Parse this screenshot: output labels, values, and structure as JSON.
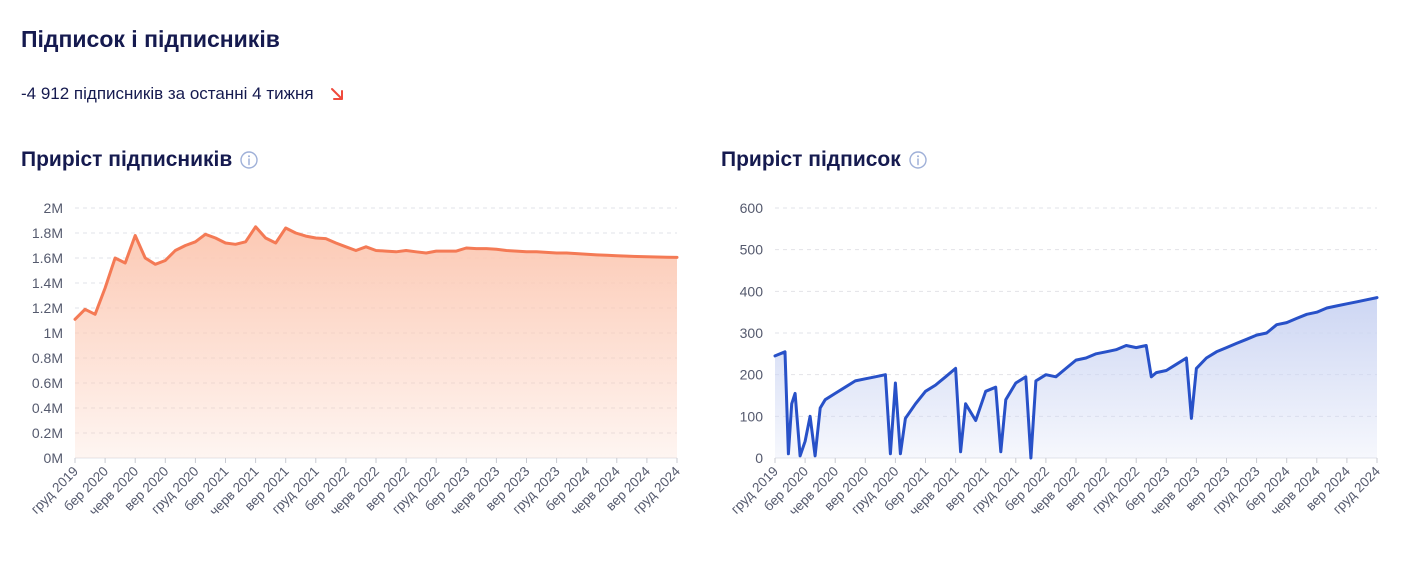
{
  "header": {
    "title": "Підписок і підписників",
    "delta_text": "-4 912 підписників за останні 4 тижня"
  },
  "colors": {
    "followers_line": "#f47a55",
    "followers_fill": "#fcc9b4",
    "following_line": "#2851c8",
    "following_fill": "#cdd6f3",
    "down_arrow": "#ef4a3c",
    "text": "#151a4f",
    "grid": "#e2e3e8"
  },
  "icons": {
    "trend": "arrow-down-right-icon",
    "info": "info-circle-icon"
  },
  "chart_data": [
    {
      "type": "area",
      "title": "Приріст підписників",
      "ylim": [
        0,
        2000000
      ],
      "y_ticks": [
        "0M",
        "0.2M",
        "0.4M",
        "0.6M",
        "0.8M",
        "1M",
        "1.2M",
        "1.4M",
        "1.6M",
        "1.8M",
        "2M"
      ],
      "x_ticks": [
        "груд 2019",
        "бер 2020",
        "черв 2020",
        "вер 2020",
        "груд 2020",
        "бер 2021",
        "черв 2021",
        "вер 2021",
        "груд 2021",
        "бер 2022",
        "черв 2022",
        "вер 2022",
        "груд 2022",
        "бер 2023",
        "черв 2023",
        "вер 2023",
        "груд 2023",
        "бер 2024",
        "черв 2024",
        "вер 2024",
        "груд 2024"
      ],
      "x_range": [
        "2019-12",
        "2024-12"
      ],
      "grid": true,
      "series": [
        {
          "values": [
            [
              "2019-12",
              1110000
            ],
            [
              "2020-01",
              1190000
            ],
            [
              "2020-02",
              1150000
            ],
            [
              "2020-03",
              1360000
            ],
            [
              "2020-04",
              1600000
            ],
            [
              "2020-05",
              1560000
            ],
            [
              "2020-06",
              1780000
            ],
            [
              "2020-07",
              1600000
            ],
            [
              "2020-08",
              1550000
            ],
            [
              "2020-09",
              1580000
            ],
            [
              "2020-10",
              1660000
            ],
            [
              "2020-11",
              1700000
            ],
            [
              "2020-12",
              1730000
            ],
            [
              "2021-01",
              1790000
            ],
            [
              "2021-02",
              1760000
            ],
            [
              "2021-03",
              1720000
            ],
            [
              "2021-04",
              1710000
            ],
            [
              "2021-05",
              1730000
            ],
            [
              "2021-06",
              1850000
            ],
            [
              "2021-07",
              1760000
            ],
            [
              "2021-08",
              1720000
            ],
            [
              "2021-09",
              1840000
            ],
            [
              "2021-10",
              1800000
            ],
            [
              "2021-11",
              1775000
            ],
            [
              "2021-12",
              1760000
            ],
            [
              "2022-01",
              1755000
            ],
            [
              "2022-02",
              1720000
            ],
            [
              "2022-03",
              1690000
            ],
            [
              "2022-04",
              1660000
            ],
            [
              "2022-05",
              1690000
            ],
            [
              "2022-06",
              1660000
            ],
            [
              "2022-07",
              1655000
            ],
            [
              "2022-08",
              1650000
            ],
            [
              "2022-09",
              1660000
            ],
            [
              "2022-10",
              1650000
            ],
            [
              "2022-11",
              1640000
            ],
            [
              "2022-12",
              1655000
            ],
            [
              "2023-01",
              1655000
            ],
            [
              "2023-02",
              1655000
            ],
            [
              "2023-03",
              1680000
            ],
            [
              "2023-04",
              1675000
            ],
            [
              "2023-05",
              1675000
            ],
            [
              "2023-06",
              1670000
            ],
            [
              "2023-07",
              1660000
            ],
            [
              "2023-08",
              1655000
            ],
            [
              "2023-09",
              1650000
            ],
            [
              "2023-10",
              1650000
            ],
            [
              "2023-11",
              1645000
            ],
            [
              "2023-12",
              1640000
            ],
            [
              "2024-01",
              1640000
            ],
            [
              "2024-02",
              1635000
            ],
            [
              "2024-03",
              1630000
            ],
            [
              "2024-04",
              1625000
            ],
            [
              "2024-05",
              1622000
            ],
            [
              "2024-06",
              1618000
            ],
            [
              "2024-07",
              1615000
            ],
            [
              "2024-08",
              1612000
            ],
            [
              "2024-09",
              1610000
            ],
            [
              "2024-10",
              1608000
            ],
            [
              "2024-11",
              1606000
            ],
            [
              "2024-12",
              1605000
            ]
          ]
        }
      ]
    },
    {
      "type": "area",
      "title": "Приріст підписок",
      "ylim": [
        0,
        600
      ],
      "y_ticks": [
        "0",
        "100",
        "200",
        "300",
        "400",
        "500",
        "600"
      ],
      "x_ticks": [
        "груд 2019",
        "бер 2020",
        "черв 2020",
        "вер 2020",
        "груд 2020",
        "бер 2021",
        "черв 2021",
        "вер 2021",
        "груд 2021",
        "бер 2022",
        "черв 2022",
        "вер 2022",
        "груд 2022",
        "бер 2023",
        "черв 2023",
        "вер 2023",
        "груд 2023",
        "бер 2024",
        "черв 2024",
        "вер 2024",
        "груд 2024"
      ],
      "x_range": [
        "2019-12",
        "2024-12"
      ],
      "grid": true,
      "series": [
        {
          "values": [
            [
              "2019-12",
              245
            ],
            [
              "2020-01",
              255
            ],
            [
              "2020-01",
              10
            ],
            [
              "2020-01",
              130
            ],
            [
              "2020-02",
              155
            ],
            [
              "2020-02",
              5
            ],
            [
              "2020-03",
              40
            ],
            [
              "2020-03",
              100
            ],
            [
              "2020-04",
              5
            ],
            [
              "2020-04",
              120
            ],
            [
              "2020-05",
              140
            ],
            [
              "2020-06",
              155
            ],
            [
              "2020-07",
              170
            ],
            [
              "2020-08",
              185
            ],
            [
              "2020-09",
              190
            ],
            [
              "2020-10",
              195
            ],
            [
              "2020-11",
              200
            ],
            [
              "2020-11",
              10
            ],
            [
              "2020-12",
              180
            ],
            [
              "2020-12",
              10
            ],
            [
              "2021-01",
              95
            ],
            [
              "2021-02",
              130
            ],
            [
              "2021-03",
              160
            ],
            [
              "2021-04",
              175
            ],
            [
              "2021-05",
              195
            ],
            [
              "2021-06",
              215
            ],
            [
              "2021-06",
              15
            ],
            [
              "2021-07",
              130
            ],
            [
              "2021-08",
              90
            ],
            [
              "2021-09",
              160
            ],
            [
              "2021-10",
              170
            ],
            [
              "2021-10",
              15
            ],
            [
              "2021-11",
              140
            ],
            [
              "2021-12",
              180
            ],
            [
              "2022-01",
              195
            ],
            [
              "2022-01",
              0
            ],
            [
              "2022-02",
              185
            ],
            [
              "2022-03",
              200
            ],
            [
              "2022-04",
              195
            ],
            [
              "2022-05",
              215
            ],
            [
              "2022-06",
              235
            ],
            [
              "2022-07",
              240
            ],
            [
              "2022-08",
              250
            ],
            [
              "2022-09",
              255
            ],
            [
              "2022-10",
              260
            ],
            [
              "2022-11",
              270
            ],
            [
              "2022-12",
              265
            ],
            [
              "2023-01",
              270
            ],
            [
              "2023-01",
              195
            ],
            [
              "2023-02",
              205
            ],
            [
              "2023-03",
              210
            ],
            [
              "2023-04",
              225
            ],
            [
              "2023-05",
              240
            ],
            [
              "2023-05",
              95
            ],
            [
              "2023-06",
              215
            ],
            [
              "2023-07",
              240
            ],
            [
              "2023-08",
              255
            ],
            [
              "2023-09",
              265
            ],
            [
              "2023-10",
              275
            ],
            [
              "2023-11",
              285
            ],
            [
              "2023-12",
              295
            ],
            [
              "2024-01",
              300
            ],
            [
              "2024-02",
              320
            ],
            [
              "2024-03",
              325
            ],
            [
              "2024-04",
              335
            ],
            [
              "2024-05",
              345
            ],
            [
              "2024-06",
              350
            ],
            [
              "2024-07",
              360
            ],
            [
              "2024-08",
              365
            ],
            [
              "2024-09",
              370
            ],
            [
              "2024-10",
              375
            ],
            [
              "2024-11",
              380
            ],
            [
              "2024-12",
              385
            ]
          ]
        }
      ]
    }
  ]
}
